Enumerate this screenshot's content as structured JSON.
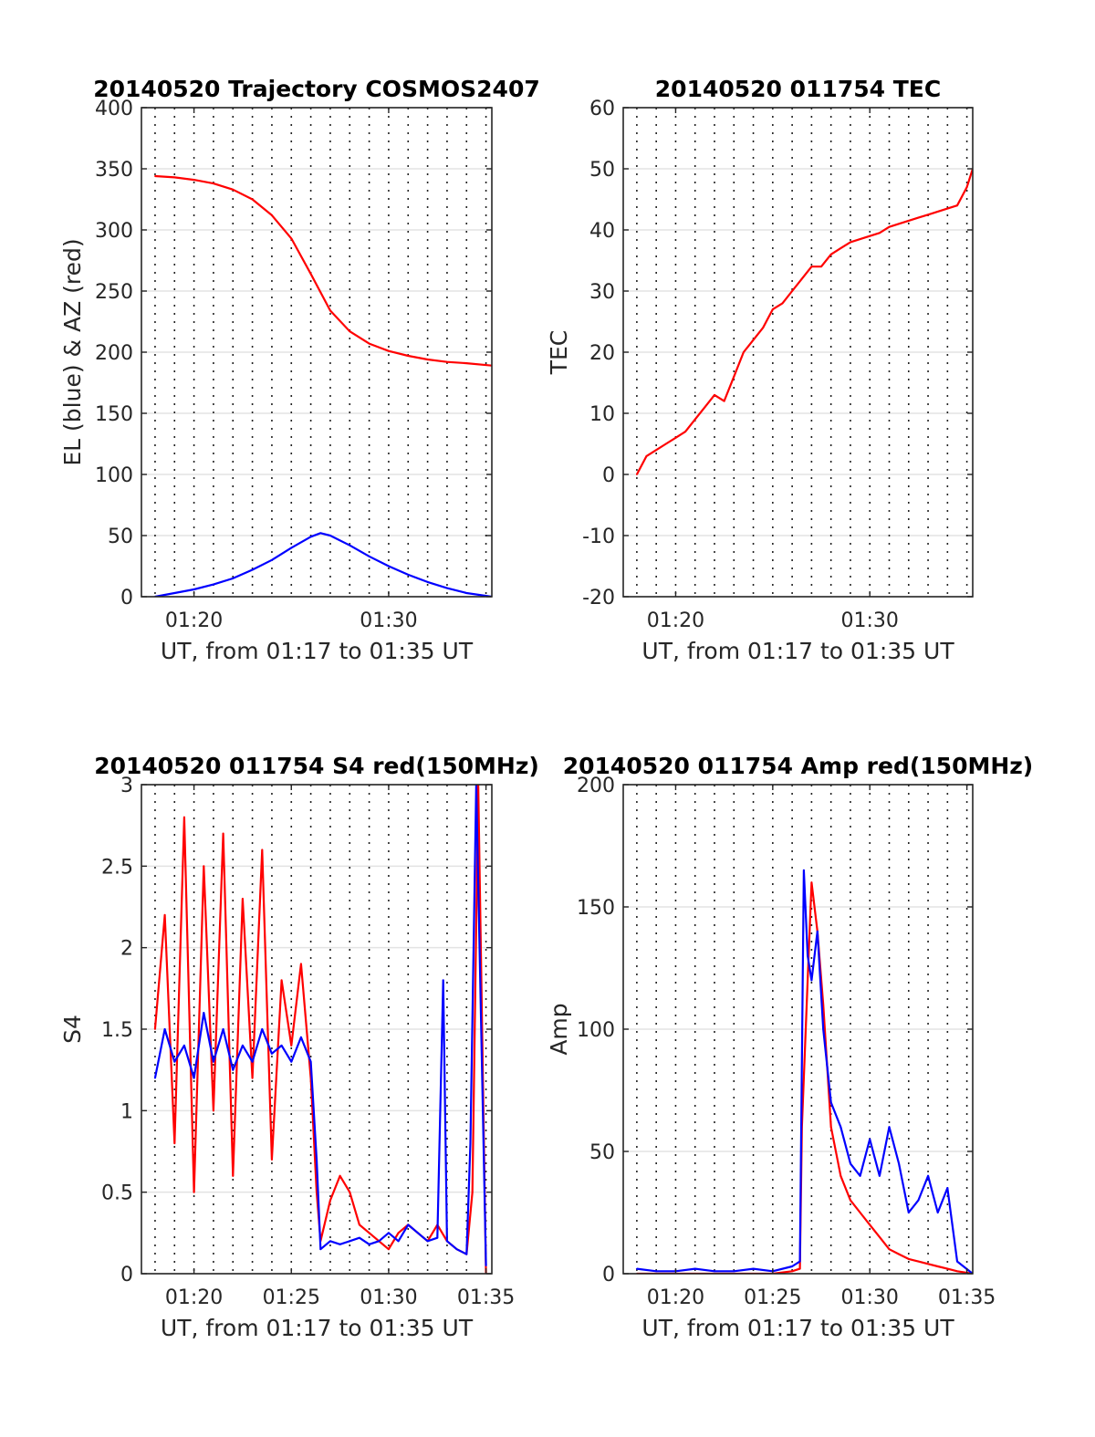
{
  "chart_data": [
    {
      "type": "line",
      "title": "20140520 Trajectory COSMOS2407",
      "xlabel": "UT, from 01:17 to 01:35 UT",
      "ylabel": "EL (blue) & AZ (red)",
      "xlim": [
        17.3,
        35.3
      ],
      "ylim": [
        0,
        400
      ],
      "xticks": [
        20,
        30
      ],
      "xtick_labels": [
        "01:20",
        "01:30"
      ],
      "yticks": [
        0,
        50,
        100,
        150,
        200,
        250,
        300,
        350,
        400
      ],
      "ytick_labels": [
        "0",
        "50",
        "100",
        "150",
        "200",
        "250",
        "300",
        "350",
        "400"
      ],
      "grid": true,
      "series": [
        {
          "color": "#ff0000",
          "x": [
            18,
            19,
            20,
            21,
            22,
            23,
            24,
            25,
            26,
            27,
            28,
            29,
            30,
            31,
            32,
            33,
            34,
            35.3
          ],
          "values": [
            344,
            343,
            341,
            338,
            333,
            325,
            312,
            293,
            264,
            234,
            217,
            207,
            201,
            197,
            194,
            192,
            191,
            189
          ]
        },
        {
          "color": "#0000ff",
          "x": [
            18,
            19,
            20,
            21,
            22,
            23,
            24,
            25,
            26,
            26.5,
            27,
            28,
            29,
            30,
            31,
            32,
            33,
            34,
            35.3
          ],
          "values": [
            0,
            3,
            6,
            10,
            15,
            22,
            30,
            40,
            49,
            52,
            50,
            42,
            33,
            25,
            18,
            12,
            7,
            3,
            0
          ]
        }
      ]
    },
    {
      "type": "line",
      "title": "20140520 011754 TEC",
      "xlabel": "UT, from 01:17 to 01:35 UT",
      "ylabel": "TEC",
      "xlim": [
        17.3,
        35.3
      ],
      "ylim": [
        -20,
        60
      ],
      "xticks": [
        20,
        30
      ],
      "xtick_labels": [
        "01:20",
        "01:30"
      ],
      "yticks": [
        -20,
        -10,
        0,
        10,
        20,
        30,
        40,
        50,
        60
      ],
      "ytick_labels": [
        "-20",
        "-10",
        "0",
        "10",
        "20",
        "30",
        "40",
        "50",
        "60"
      ],
      "grid": true,
      "series": [
        {
          "color": "#ff0000",
          "x": [
            18,
            18.5,
            19,
            19.5,
            20,
            20.5,
            21,
            21.5,
            22,
            22.5,
            23,
            23.5,
            24,
            24.5,
            25,
            25.5,
            26,
            26.5,
            27,
            27.5,
            28,
            28.5,
            29,
            29.5,
            30,
            30.5,
            31,
            31.5,
            32,
            32.5,
            33,
            33.5,
            34,
            34.5,
            35,
            35.3
          ],
          "values": [
            0,
            3,
            4,
            5,
            6,
            7,
            9,
            11,
            13,
            12,
            16,
            20,
            22,
            24,
            27,
            28,
            30,
            32,
            34,
            34,
            36,
            37,
            38,
            38.5,
            39,
            39.5,
            40.5,
            41,
            41.5,
            42,
            42.5,
            43,
            43.5,
            44,
            47,
            50
          ]
        }
      ]
    },
    {
      "type": "line",
      "title": "20140520 011754 S4 red(150MHz)",
      "xlabel": "UT, from 01:17 to 01:35 UT",
      "ylabel": "S4",
      "xlim": [
        17.3,
        35.3
      ],
      "ylim": [
        0,
        3
      ],
      "xticks": [
        20,
        25,
        30,
        35
      ],
      "xtick_labels": [
        "01:20",
        "01:25",
        "01:30",
        "01:35"
      ],
      "yticks": [
        0,
        0.5,
        1,
        1.5,
        2,
        2.5,
        3
      ],
      "ytick_labels": [
        "0",
        "0.5",
        "1",
        "1.5",
        "2",
        "2.5",
        "3"
      ],
      "grid": true,
      "series": [
        {
          "color": "#ff0000",
          "x": [
            18,
            18.5,
            19,
            19.5,
            20,
            20.5,
            21,
            21.5,
            22,
            22.5,
            23,
            23.5,
            24,
            24.5,
            25,
            25.5,
            26,
            26.3,
            26.5,
            27,
            27.5,
            28,
            28.5,
            29,
            29.5,
            30,
            30.5,
            31,
            31.5,
            32,
            32.5,
            33,
            33.5,
            34,
            34.3,
            34.6,
            35
          ],
          "values": [
            1.5,
            2.2,
            0.8,
            2.8,
            0.5,
            2.5,
            1.0,
            2.7,
            0.6,
            2.3,
            1.2,
            2.6,
            0.7,
            1.8,
            1.4,
            1.9,
            1.2,
            0.5,
            0.2,
            0.45,
            0.6,
            0.5,
            0.3,
            0.25,
            0.2,
            0.15,
            0.25,
            0.3,
            0.25,
            0.2,
            0.3,
            0.2,
            0.15,
            0.12,
            0.5,
            3.0,
            0.0
          ]
        },
        {
          "color": "#0000ff",
          "x": [
            18,
            18.5,
            19,
            19.5,
            20,
            20.5,
            21,
            21.5,
            22,
            22.5,
            23,
            23.5,
            24,
            24.5,
            25,
            25.5,
            26,
            26.3,
            26.5,
            27,
            27.5,
            28,
            28.5,
            29,
            29.5,
            30,
            30.5,
            31,
            31.5,
            32,
            32.5,
            32.8,
            33,
            33.5,
            34,
            34.2,
            34.5,
            35
          ],
          "values": [
            1.2,
            1.5,
            1.3,
            1.4,
            1.2,
            1.6,
            1.3,
            1.5,
            1.25,
            1.4,
            1.3,
            1.5,
            1.35,
            1.4,
            1.3,
            1.45,
            1.3,
            0.7,
            0.15,
            0.2,
            0.18,
            0.2,
            0.22,
            0.18,
            0.2,
            0.25,
            0.2,
            0.3,
            0.25,
            0.2,
            0.22,
            1.8,
            0.2,
            0.15,
            0.12,
            0.8,
            3.0,
            0.05
          ]
        }
      ]
    },
    {
      "type": "line",
      "title": "20140520 011754 Amp red(150MHz)",
      "xlabel": "UT, from 01:17 to 01:35 UT",
      "ylabel": "Amp",
      "xlim": [
        17.3,
        35.3
      ],
      "ylim": [
        0,
        200
      ],
      "xticks": [
        20,
        25,
        30,
        35
      ],
      "xtick_labels": [
        "01:20",
        "01:25",
        "01:30",
        "01:35"
      ],
      "yticks": [
        0,
        50,
        100,
        150,
        200
      ],
      "ytick_labels": [
        "0",
        "50",
        "100",
        "150",
        "200"
      ],
      "grid": true,
      "series": [
        {
          "color": "#ff0000",
          "x": [
            18,
            19,
            20,
            21,
            22,
            23,
            24,
            25,
            26,
            26.4,
            26.5,
            26.8,
            27,
            27.3,
            27.6,
            28,
            28.5,
            29,
            29.5,
            30,
            30.5,
            31,
            31.5,
            32,
            32.5,
            33,
            33.5,
            34,
            34.5,
            35.3
          ],
          "values": [
            0,
            0,
            0,
            0,
            0,
            0,
            0,
            0,
            1,
            2,
            60,
            120,
            160,
            140,
            110,
            60,
            40,
            30,
            25,
            20,
            15,
            10,
            8,
            6,
            5,
            4,
            3,
            2,
            1,
            0
          ]
        },
        {
          "color": "#0000ff",
          "x": [
            18,
            19,
            20,
            21,
            22,
            23,
            24,
            25,
            26,
            26.4,
            26.6,
            26.8,
            27,
            27.3,
            27.6,
            28,
            28.5,
            29,
            29.5,
            30,
            30.5,
            31,
            31.5,
            32,
            32.5,
            33,
            33.5,
            34,
            34.5,
            35.3
          ],
          "values": [
            2,
            1,
            1,
            2,
            1,
            1,
            2,
            1,
            3,
            5,
            165,
            130,
            120,
            140,
            100,
            70,
            60,
            45,
            40,
            55,
            40,
            60,
            45,
            25,
            30,
            40,
            25,
            35,
            5,
            0
          ]
        }
      ]
    }
  ]
}
